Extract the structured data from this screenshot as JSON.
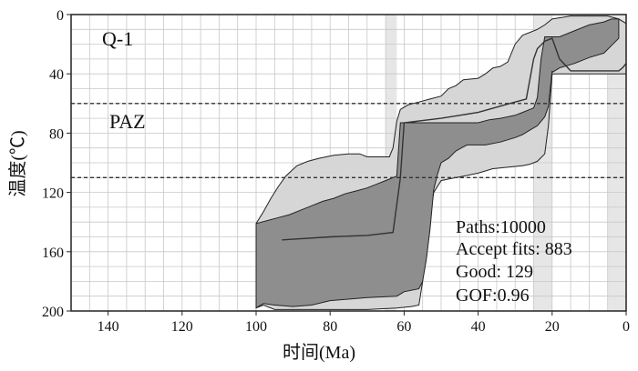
{
  "chart_data": {
    "type": "area",
    "title": "",
    "xlabel": "时间(Ma)",
    "ylabel": "温度(℃)",
    "xlim": [
      150,
      0
    ],
    "ylim": [
      200,
      0
    ],
    "xticks": [
      "140",
      "120",
      "100",
      "80",
      "60",
      "40",
      "20",
      "0"
    ],
    "xtick_values": [
      140,
      120,
      100,
      80,
      60,
      40,
      20,
      0
    ],
    "yticks": [
      "0",
      "40",
      "80",
      "120",
      "160",
      "200"
    ],
    "ytick_values": [
      0,
      40,
      80,
      120,
      160,
      200
    ],
    "sample_label": "Q-1",
    "zone_label": "PAZ",
    "paz_bounds": [
      60,
      110
    ],
    "highlight_ranges": [
      [
        65,
        62
      ],
      [
        25,
        20
      ],
      [
        5,
        0
      ]
    ],
    "stats": [
      "Paths:10000",
      "Accept fits: 883",
      "Good: 129",
      "GOF:0.96"
    ],
    "acceptable_envelope": [
      [
        100,
        141
      ],
      [
        98,
        133
      ],
      [
        96,
        124
      ],
      [
        94,
        116
      ],
      [
        92,
        109
      ],
      [
        89,
        102
      ],
      [
        86,
        99
      ],
      [
        83,
        97
      ],
      [
        79,
        95
      ],
      [
        75,
        94
      ],
      [
        72,
        94
      ],
      [
        70,
        96
      ],
      [
        66,
        96
      ],
      [
        64,
        96
      ],
      [
        63,
        90
      ],
      [
        62,
        72
      ],
      [
        61,
        64
      ],
      [
        59,
        61
      ],
      [
        56,
        59
      ],
      [
        53,
        57
      ],
      [
        50,
        55
      ],
      [
        48,
        50
      ],
      [
        46,
        48
      ],
      [
        44,
        44
      ],
      [
        40,
        43
      ],
      [
        38,
        40
      ],
      [
        36,
        36
      ],
      [
        34,
        35
      ],
      [
        32,
        32
      ],
      [
        30,
        20
      ],
      [
        28,
        14
      ],
      [
        26,
        12
      ],
      [
        24,
        10
      ],
      [
        22,
        7
      ],
      [
        20,
        3
      ],
      [
        15,
        1
      ],
      [
        10,
        1
      ],
      [
        5,
        1
      ],
      [
        2,
        3
      ],
      [
        0,
        6
      ],
      [
        0,
        9
      ],
      [
        0,
        25
      ],
      [
        0,
        40
      ],
      [
        2,
        40
      ],
      [
        10,
        40
      ],
      [
        20,
        40
      ],
      [
        21,
        75
      ],
      [
        22,
        94
      ],
      [
        24,
        99
      ],
      [
        26,
        101
      ],
      [
        28,
        102
      ],
      [
        32,
        103
      ],
      [
        36,
        104
      ],
      [
        40,
        107
      ],
      [
        44,
        109
      ],
      [
        48,
        111
      ],
      [
        50,
        112
      ],
      [
        52,
        120
      ],
      [
        54,
        150
      ],
      [
        55,
        180
      ],
      [
        56,
        196
      ],
      [
        58,
        197
      ],
      [
        62,
        198
      ],
      [
        70,
        199
      ],
      [
        80,
        199
      ],
      [
        90,
        199
      ],
      [
        95,
        199
      ],
      [
        98,
        196
      ],
      [
        100,
        198
      ]
    ],
    "good_envelope": [
      [
        100,
        141
      ],
      [
        97,
        139
      ],
      [
        94,
        137
      ],
      [
        91,
        135
      ],
      [
        88,
        132
      ],
      [
        85,
        129
      ],
      [
        82,
        126
      ],
      [
        79,
        124
      ],
      [
        76,
        121
      ],
      [
        73,
        119
      ],
      [
        70,
        117
      ],
      [
        67,
        114
      ],
      [
        65,
        112
      ],
      [
        62,
        109
      ],
      [
        61,
        73
      ],
      [
        58,
        73
      ],
      [
        55,
        73
      ],
      [
        50,
        73
      ],
      [
        45,
        73
      ],
      [
        40,
        73
      ],
      [
        37,
        71
      ],
      [
        34,
        70
      ],
      [
        30,
        68
      ],
      [
        28,
        66
      ],
      [
        26,
        64
      ],
      [
        25,
        63
      ],
      [
        24,
        56
      ],
      [
        23,
        30
      ],
      [
        22,
        15
      ],
      [
        20,
        15
      ],
      [
        18,
        15
      ],
      [
        14,
        11
      ],
      [
        10,
        7
      ],
      [
        6,
        5
      ],
      [
        4,
        3
      ],
      [
        2,
        3
      ],
      [
        2,
        16
      ],
      [
        4,
        21
      ],
      [
        6,
        26
      ],
      [
        10,
        29
      ],
      [
        14,
        33
      ],
      [
        18,
        36
      ],
      [
        20,
        39
      ],
      [
        20,
        38
      ],
      [
        21,
        62
      ],
      [
        22,
        69
      ],
      [
        24,
        75
      ],
      [
        26,
        78
      ],
      [
        28,
        81
      ],
      [
        30,
        83
      ],
      [
        34,
        86
      ],
      [
        38,
        88
      ],
      [
        40,
        88
      ],
      [
        43,
        88
      ],
      [
        46,
        92
      ],
      [
        48,
        97
      ],
      [
        50,
        100
      ],
      [
        51,
        108
      ],
      [
        52,
        118
      ],
      [
        53,
        145
      ],
      [
        54,
        165
      ],
      [
        55,
        180
      ],
      [
        56,
        185
      ],
      [
        60,
        187
      ],
      [
        62,
        190
      ],
      [
        70,
        191
      ],
      [
        80,
        193
      ],
      [
        85,
        196
      ],
      [
        90,
        197
      ],
      [
        95,
        196
      ],
      [
        98,
        195
      ],
      [
        100,
        198
      ]
    ],
    "best_path": [
      [
        93,
        152
      ],
      [
        80,
        150
      ],
      [
        70,
        149
      ],
      [
        63,
        147
      ],
      [
        61,
        110
      ],
      [
        60,
        73
      ],
      [
        50,
        70
      ],
      [
        40,
        66
      ],
      [
        30,
        59
      ],
      [
        27,
        57
      ],
      [
        25,
        30
      ],
      [
        24,
        23
      ],
      [
        22,
        18
      ],
      [
        20,
        16
      ],
      [
        18,
        30
      ],
      [
        15,
        38
      ],
      [
        10,
        38
      ],
      [
        5,
        38
      ],
      [
        2,
        38
      ],
      [
        1,
        36
      ],
      [
        0,
        33
      ]
    ]
  }
}
